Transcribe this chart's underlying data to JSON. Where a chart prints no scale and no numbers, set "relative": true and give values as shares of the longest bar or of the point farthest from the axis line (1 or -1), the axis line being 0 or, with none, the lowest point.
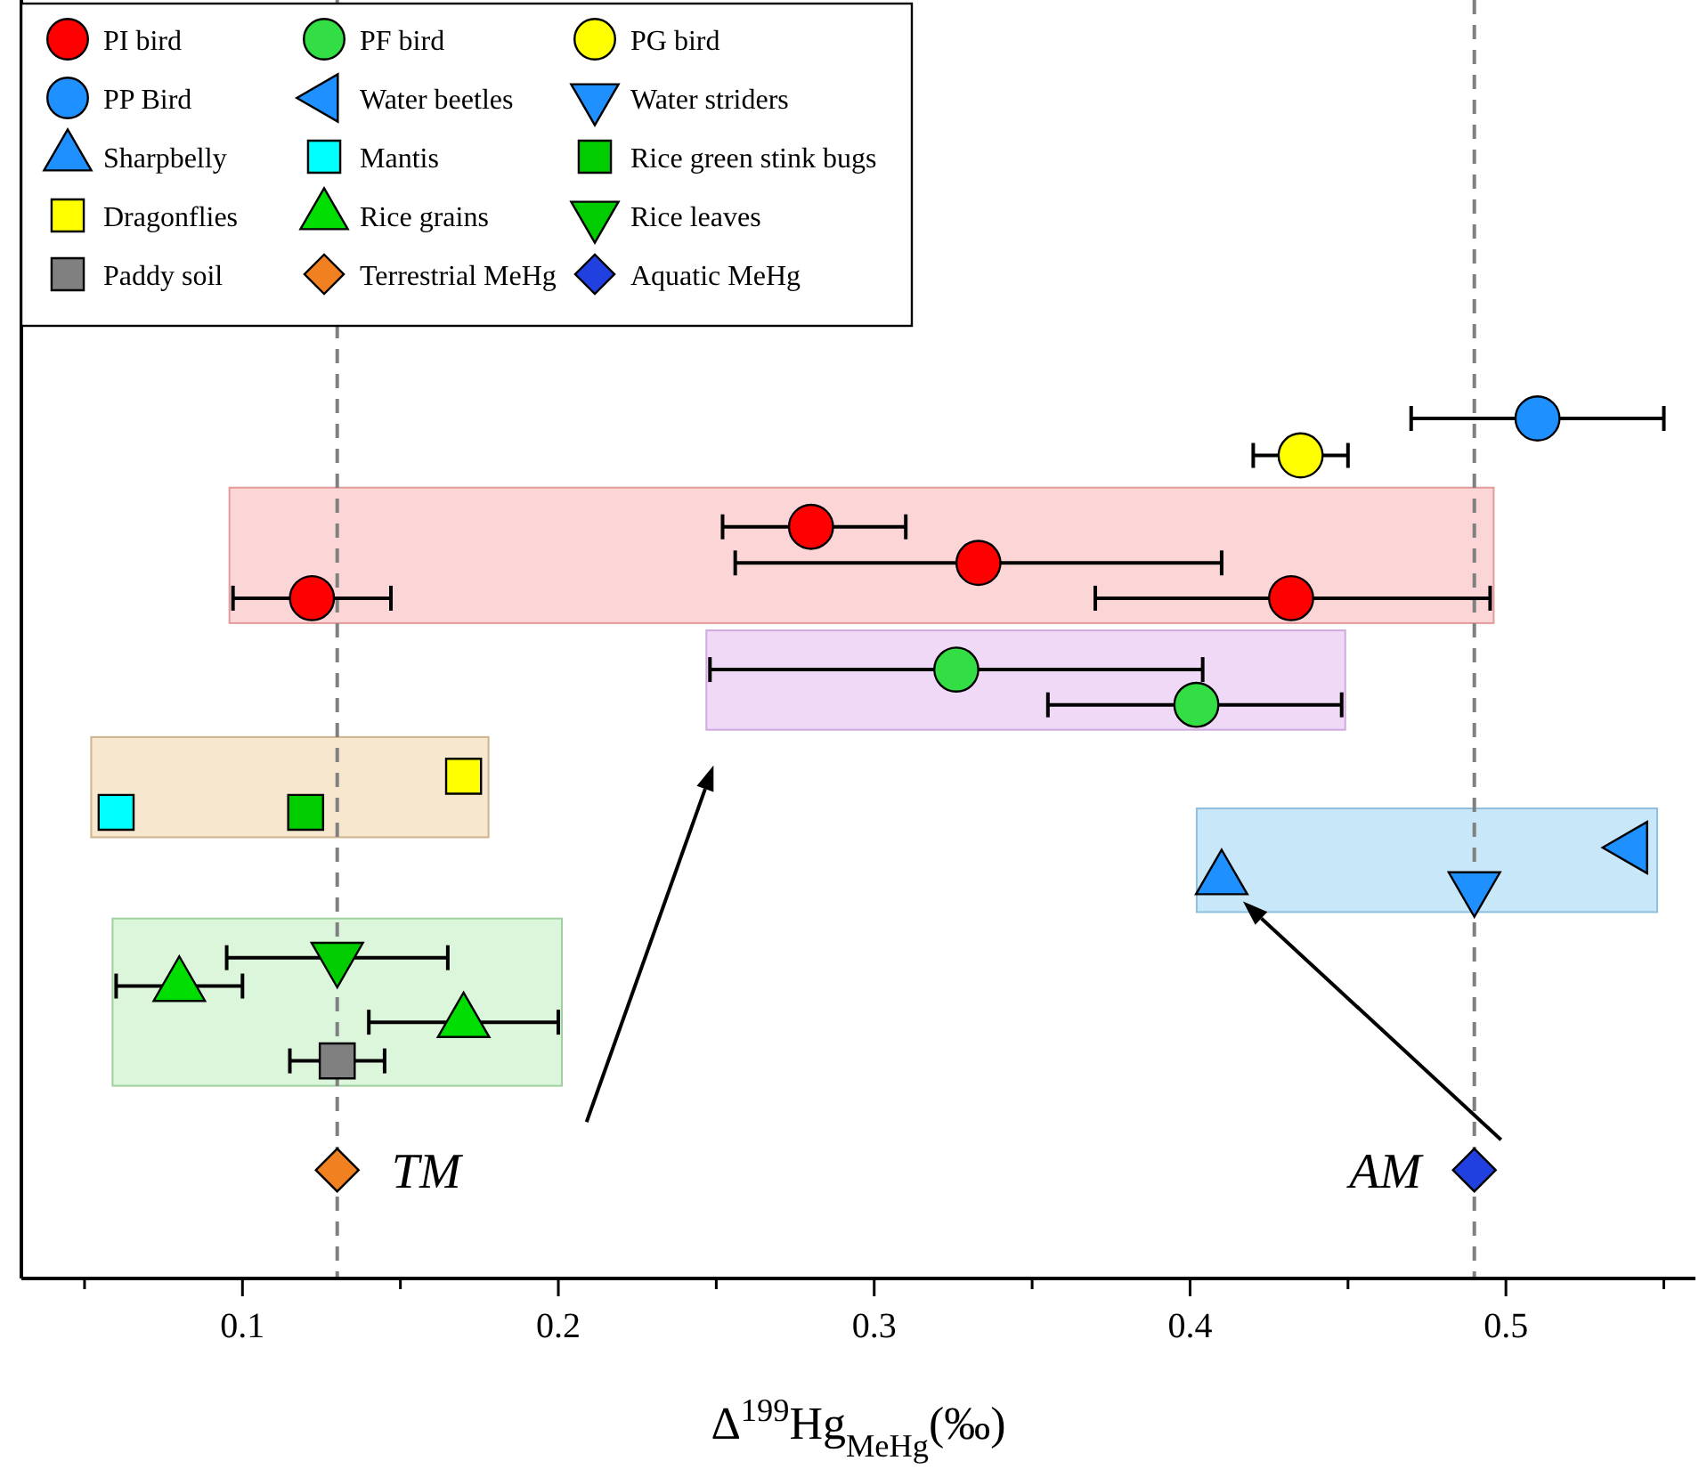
{
  "chart_data": {
    "type": "scatter",
    "relative": true,
    "xlabel": "Δ$^{199}$Hg$_{MeHg}$(‰)",
    "xlim": [
      0.03,
      0.56
    ],
    "xticks": [
      {
        "value": 0.05,
        "label": null
      },
      0.1,
      {
        "value": 0.15,
        "label": null
      },
      0.2,
      {
        "value": 0.25,
        "label": null
      },
      0.3,
      {
        "value": 0.35,
        "label": null
      },
      0.4,
      {
        "value": 0.45,
        "label": null
      },
      0.5,
      {
        "value": 0.55,
        "label": null
      }
    ],
    "legend": "top left",
    "series": [
      {
        "name": "PI bird",
        "color": "#ff0000",
        "marker": "circle",
        "x": [
          0.28,
          0.333,
          0.122,
          0.432
        ],
        "values": [
          0.874,
          0.832,
          0.791,
          0.791
        ],
        "xerrors": [
          [
            0.252,
            0.31
          ],
          [
            0.256,
            0.41
          ],
          [
            0.097,
            0.147
          ],
          [
            0.37,
            0.495
          ]
        ]
      },
      {
        "name": "PF bird",
        "color": "#33dd44",
        "marker": "circle",
        "x": [
          0.326,
          0.402
        ],
        "values": [
          0.708,
          0.667
        ],
        "xerrors": [
          [
            0.248,
            0.404
          ],
          [
            0.355,
            0.448
          ]
        ]
      },
      {
        "name": "PG bird",
        "color": "#ffff00",
        "marker": "circle",
        "x": [
          0.435
        ],
        "values": [
          0.957
        ],
        "xerrors": [
          [
            0.42,
            0.45
          ]
        ]
      },
      {
        "name": "PP Bird",
        "color": "#1e90ff",
        "marker": "circle",
        "x": [
          0.51
        ],
        "values": [
          1
        ],
        "xerrors": [
          [
            0.47,
            0.55
          ]
        ]
      },
      {
        "name": "Water beetles",
        "color": "#1e90ff",
        "marker": "triangle-left",
        "x": [
          0.54
        ],
        "values": [
          0.501
        ]
      },
      {
        "name": "Water striders",
        "color": "#1e90ff",
        "marker": "triangle-down",
        "x": [
          0.49
        ],
        "values": [
          0.455
        ]
      },
      {
        "name": "Sharpbelly",
        "color": "#1e90ff",
        "marker": "triangle",
        "x": [
          0.41
        ],
        "values": [
          0.464
        ]
      },
      {
        "name": "Mantis",
        "color": "#00ffff",
        "marker": "square",
        "x": [
          0.06
        ],
        "values": [
          0.542
        ]
      },
      {
        "name": "Rice green stink bugs",
        "color": "#00cc00",
        "marker": "square",
        "x": [
          0.12
        ],
        "values": [
          0.542
        ]
      },
      {
        "name": "Dragonflies",
        "color": "#ffff00",
        "marker": "square",
        "x": [
          0.17
        ],
        "values": [
          0.584
        ]
      },
      {
        "name": "Rice grains",
        "color": "#00dd00",
        "marker": "triangle",
        "x": [
          0.08,
          0.17
        ],
        "values": [
          0.34,
          0.298
        ],
        "xerrors": [
          [
            0.06,
            0.1
          ],
          [
            0.14,
            0.2
          ]
        ]
      },
      {
        "name": "Rice leaves",
        "color": "#00cc00",
        "marker": "triangle-down",
        "x": [
          0.13
        ],
        "values": [
          0.373
        ],
        "xerrors": [
          [
            0.095,
            0.165
          ]
        ]
      },
      {
        "name": "Paddy soil",
        "color": "#808080",
        "marker": "square",
        "x": [
          0.13
        ],
        "values": [
          0.253
        ],
        "xerrors": [
          [
            0.115,
            0.145
          ]
        ]
      },
      {
        "name": "Terrestrial MeHg",
        "color": "#f08020",
        "marker": "diamond",
        "x": [
          0.13
        ],
        "values": [
          0.126
        ]
      },
      {
        "name": "Aquatic MeHg",
        "color": "#2040e0",
        "marker": "diamond",
        "x": [
          0.49
        ],
        "values": [
          0.126
        ]
      }
    ],
    "ref_lines": [
      {
        "axis": "x",
        "value": 0.13,
        "color": "#808080",
        "line_style": "dashed"
      },
      {
        "axis": "x",
        "value": 0.49,
        "color": "#808080",
        "line_style": "dashed"
      }
    ],
    "annotations": [
      "TM",
      "AM"
    ]
  }
}
